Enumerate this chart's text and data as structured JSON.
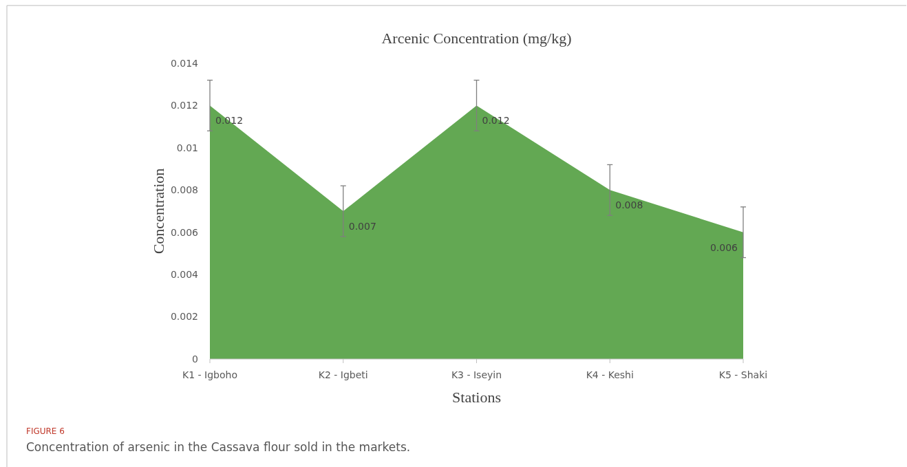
{
  "chart_data": {
    "type": "area",
    "title": "Arcenic Concentration (mg/kg)",
    "xlabel": "Stations",
    "ylabel": "Concentration",
    "categories": [
      "K1 - Igboho",
      "K2 - Igbeti",
      "K3 - Iseyin",
      "K4 - Keshi",
      "K5 - Shaki"
    ],
    "values": [
      0.012,
      0.007,
      0.012,
      0.008,
      0.006
    ],
    "errors": [
      0.0012,
      0.0012,
      0.0012,
      0.0012,
      0.0012
    ],
    "color": "#63a853",
    "data_labels": true,
    "grid": false,
    "ylim": [
      0,
      0.014
    ],
    "yticks": [
      0,
      0.002,
      0.004,
      0.006,
      0.008,
      0.01,
      0.012,
      0.014
    ],
    "annotations": [
      "FIGURE 6",
      "Concentration of arsenic in the Cassava flour sold in the markets."
    ]
  }
}
